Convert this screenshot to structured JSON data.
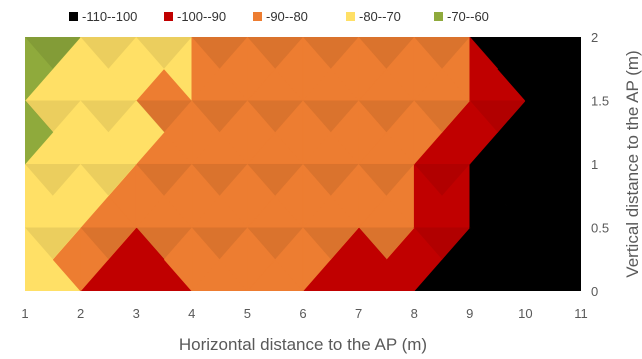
{
  "chart_data": {
    "type": "contour",
    "title": "",
    "xlabel": "Horizontal distance to the AP (m)",
    "ylabel": "Vertical distance to the AP (m)",
    "xlim": [
      1,
      11
    ],
    "ylim": [
      0,
      2
    ],
    "x_ticks": [
      "1",
      "2",
      "3",
      "4",
      "5",
      "6",
      "7",
      "8",
      "9",
      "10",
      "11"
    ],
    "y_ticks": [
      "0",
      "0.5",
      "1",
      "1.5",
      "2"
    ],
    "legend_position": "top",
    "bands": [
      {
        "name": "-110--100",
        "color": "#000000"
      },
      {
        "name": "-100--90",
        "color": "#c00000"
      },
      {
        "name": "-90--80",
        "color": "#ed7d31"
      },
      {
        "name": "-80--70",
        "color": "#ffe066"
      },
      {
        "name": "-70--60",
        "color": "#8faa3c"
      }
    ],
    "x": [
      1,
      2,
      3,
      4,
      5,
      6,
      7,
      8,
      9,
      10,
      11
    ],
    "y": [
      0,
      0.5,
      1,
      1.5,
      2
    ],
    "z": [
      [
        -72,
        -86,
        -98,
        -88,
        -84,
        -92,
        -98,
        -101,
        -106,
        -108,
        -108
      ],
      [
        -72,
        -84,
        -90,
        -85,
        -86,
        -86,
        -84,
        -90,
        -104,
        -108,
        -108
      ],
      [
        -68,
        -74,
        -79,
        -84,
        -84,
        -81,
        -84,
        -86,
        -100,
        -108,
        -108
      ],
      [
        -66,
        -76,
        -80,
        -81,
        -80,
        -80,
        -80,
        -85,
        -86,
        -108,
        -108
      ],
      [
        -62,
        -74,
        -78,
        -78,
        -86,
        -86,
        -86,
        -86,
        -94,
        -108,
        -108
      ]
    ]
  }
}
